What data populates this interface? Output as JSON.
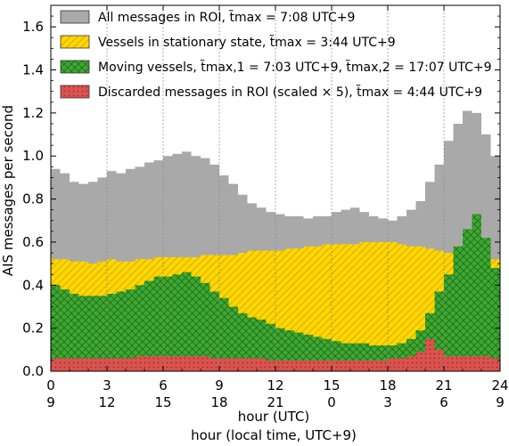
{
  "chart_data": {
    "type": "area",
    "xlabel": "hour (UTC)",
    "xlabel2": "hour (local time, UTC+9)",
    "ylabel": "AIS messages per second",
    "xlim": [
      0,
      24
    ],
    "ylim": [
      0,
      1.7
    ],
    "x_ticks": [
      0,
      3,
      6,
      9,
      12,
      15,
      18,
      21,
      24
    ],
    "x_tick_labels": [
      "0",
      "3",
      "6",
      "9",
      "12",
      "15",
      "18",
      "21",
      "24"
    ],
    "x_tick_labels_local": [
      "9",
      "12",
      "15",
      "18",
      "21",
      "0",
      "3",
      "6",
      "9"
    ],
    "y_ticks": [
      0.0,
      0.2,
      0.4,
      0.6,
      0.8,
      1.0,
      1.2,
      1.4,
      1.6
    ],
    "y_tick_labels": [
      "0.0",
      "0.2",
      "0.4",
      "0.6",
      "0.8",
      "1.0",
      "1.2",
      "1.4",
      "1.6"
    ],
    "vertical_gridlines": true,
    "legend_position": "top-left",
    "x": [
      0,
      0.5,
      1,
      1.5,
      2,
      2.5,
      3,
      3.5,
      4,
      4.5,
      5,
      5.5,
      6,
      6.5,
      7,
      7.5,
      8,
      8.5,
      9,
      9.5,
      10,
      10.5,
      11,
      11.5,
      12,
      12.5,
      13,
      13.5,
      14,
      14.5,
      15,
      15.5,
      16,
      16.5,
      17,
      17.5,
      18,
      18.5,
      19,
      19.5,
      20,
      20.5,
      21,
      21.5,
      22,
      22.5,
      23,
      23.5,
      24
    ],
    "series": [
      {
        "name": "All messages in ROI",
        "legend_label": "All messages in ROI, t̃max = 7:08 UTC+9",
        "color": "#a9a9a9",
        "pattern": "solid",
        "values": [
          0.94,
          0.92,
          0.88,
          0.87,
          0.88,
          0.9,
          0.93,
          0.92,
          0.94,
          0.95,
          0.97,
          0.98,
          1.0,
          1.01,
          1.02,
          1.0,
          0.99,
          0.96,
          0.91,
          0.87,
          0.82,
          0.78,
          0.76,
          0.74,
          0.73,
          0.72,
          0.72,
          0.71,
          0.72,
          0.72,
          0.74,
          0.75,
          0.76,
          0.74,
          0.72,
          0.71,
          0.7,
          0.72,
          0.75,
          0.79,
          0.88,
          0.96,
          1.07,
          1.15,
          1.21,
          1.2,
          1.1,
          1.0,
          0.95
        ]
      },
      {
        "name": "Vessels in stationary state",
        "legend_label": "Vessels in stationary state, t̃max = 3:44 UTC+9",
        "color": "#ffd700",
        "pattern": "hatch",
        "values": [
          0.52,
          0.52,
          0.51,
          0.51,
          0.5,
          0.51,
          0.52,
          0.51,
          0.51,
          0.52,
          0.52,
          0.53,
          0.53,
          0.53,
          0.53,
          0.53,
          0.54,
          0.54,
          0.54,
          0.54,
          0.55,
          0.56,
          0.56,
          0.56,
          0.56,
          0.57,
          0.57,
          0.58,
          0.58,
          0.59,
          0.59,
          0.59,
          0.59,
          0.6,
          0.6,
          0.6,
          0.6,
          0.59,
          0.58,
          0.58,
          0.57,
          0.56,
          0.55,
          0.54,
          0.54,
          0.54,
          0.53,
          0.52,
          0.52
        ]
      },
      {
        "name": "Moving vessels",
        "legend_label": "Moving vessels, t̃max,1 = 7:03 UTC+9, t̃max,2 = 17:07 UTC+9",
        "color": "#3ea832",
        "pattern": "crosshatch",
        "values": [
          0.4,
          0.38,
          0.36,
          0.35,
          0.35,
          0.35,
          0.36,
          0.37,
          0.38,
          0.4,
          0.42,
          0.44,
          0.44,
          0.45,
          0.46,
          0.44,
          0.41,
          0.37,
          0.34,
          0.3,
          0.27,
          0.25,
          0.24,
          0.22,
          0.2,
          0.19,
          0.18,
          0.17,
          0.16,
          0.15,
          0.14,
          0.13,
          0.13,
          0.13,
          0.12,
          0.12,
          0.12,
          0.13,
          0.15,
          0.19,
          0.27,
          0.37,
          0.45,
          0.58,
          0.66,
          0.73,
          0.62,
          0.48,
          0.45
        ]
      },
      {
        "name": "Discarded messages in ROI",
        "legend_label": "Discarded messages in ROI (scaled × 5),  t̃max = 4:44 UTC+9",
        "color": "#d9534f",
        "pattern": "dotted",
        "values": [
          0.06,
          0.06,
          0.06,
          0.06,
          0.06,
          0.06,
          0.06,
          0.06,
          0.06,
          0.07,
          0.07,
          0.07,
          0.07,
          0.07,
          0.07,
          0.07,
          0.07,
          0.06,
          0.06,
          0.06,
          0.06,
          0.06,
          0.06,
          0.05,
          0.05,
          0.05,
          0.05,
          0.05,
          0.05,
          0.05,
          0.05,
          0.05,
          0.05,
          0.05,
          0.05,
          0.05,
          0.06,
          0.06,
          0.07,
          0.09,
          0.15,
          0.1,
          0.07,
          0.07,
          0.07,
          0.07,
          0.07,
          0.06,
          0.06
        ]
      }
    ]
  }
}
